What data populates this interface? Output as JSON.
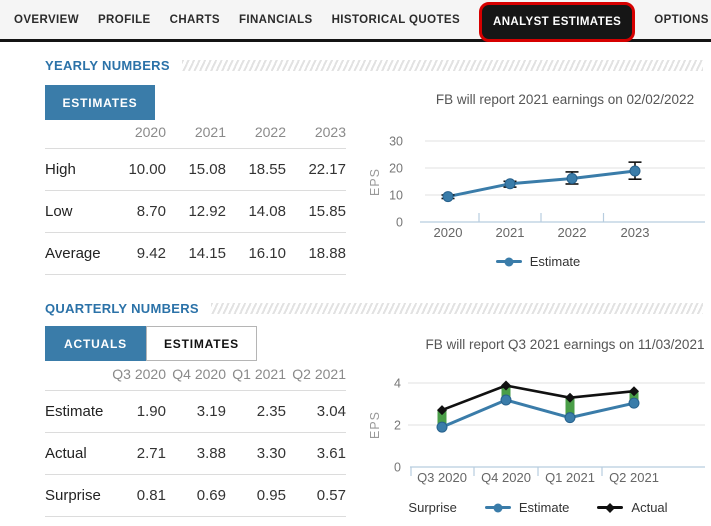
{
  "nav": {
    "tabs": [
      {
        "label": "OVERVIEW",
        "active": false
      },
      {
        "label": "PROFILE",
        "active": false
      },
      {
        "label": "CHARTS",
        "active": false
      },
      {
        "label": "FINANCIALS",
        "active": false
      },
      {
        "label": "HISTORICAL QUOTES",
        "active": false
      },
      {
        "label": "ANALYST ESTIMATES",
        "active": true
      },
      {
        "label": "OPTIONS",
        "active": false
      }
    ]
  },
  "colors": {
    "accent_blue": "#3a7ca9",
    "heading_blue": "#2b72a8",
    "active_tab_outline_red": "#d60000",
    "active_tab_bg": "#161616",
    "surprise_green": "#4a9e48",
    "actual_black": "#111111"
  },
  "yearly": {
    "heading": "YEARLY NUMBERS",
    "buttons": [
      {
        "label": "ESTIMATES",
        "active": true
      }
    ],
    "table": {
      "columns": [
        "2020",
        "2021",
        "2022",
        "2023"
      ],
      "rows": [
        {
          "label": "High",
          "values": [
            "10.00",
            "15.08",
            "18.55",
            "22.17"
          ]
        },
        {
          "label": "Low",
          "values": [
            "8.70",
            "12.92",
            "14.08",
            "15.85"
          ]
        },
        {
          "label": "Average",
          "values": [
            "9.42",
            "14.15",
            "16.10",
            "18.88"
          ]
        }
      ]
    }
  },
  "quarterly": {
    "heading": "QUARTERLY NUMBERS",
    "buttons": [
      {
        "label": "ACTUALS",
        "active": true
      },
      {
        "label": "ESTIMATES",
        "active": false
      }
    ],
    "table": {
      "columns": [
        "Q3 2020",
        "Q4 2020",
        "Q1 2021",
        "Q2 2021"
      ],
      "rows": [
        {
          "label": "Estimate",
          "values": [
            "1.90",
            "3.19",
            "2.35",
            "3.04"
          ]
        },
        {
          "label": "Actual",
          "values": [
            "2.71",
            "3.88",
            "3.30",
            "3.61"
          ]
        },
        {
          "label": "Surprise",
          "values": [
            "0.81",
            "0.69",
            "0.95",
            "0.57"
          ]
        }
      ]
    }
  },
  "chart_data": [
    {
      "type": "line",
      "title": "FB will report 2021 earnings on 02/02/2022",
      "ylabel": "EPS",
      "categories": [
        "2020",
        "2021",
        "2022",
        "2023"
      ],
      "yticks": [
        0,
        10,
        20,
        30
      ],
      "ylim": [
        0,
        33
      ],
      "grid": true,
      "legend_position": "bottom",
      "series": [
        {
          "name": "Estimate",
          "values": [
            9.42,
            14.15,
            16.1,
            18.88
          ],
          "color": "#3a7ca9",
          "marker": "circle"
        }
      ],
      "error_bars": {
        "low": [
          8.7,
          12.92,
          14.08,
          15.85
        ],
        "high": [
          10.0,
          15.08,
          18.55,
          22.17
        ],
        "color": "#111111"
      }
    },
    {
      "type": "line",
      "title": "FB will report Q3 2021 earnings on 11/03/2021",
      "ylabel": "EPS",
      "categories": [
        "Q3 2020",
        "Q4 2020",
        "Q1 2021",
        "Q2 2021"
      ],
      "yticks": [
        0,
        2,
        4
      ],
      "ylim": [
        0,
        4.6
      ],
      "grid": true,
      "legend_position": "bottom",
      "series": [
        {
          "name": "Estimate",
          "values": [
            1.9,
            3.19,
            2.35,
            3.04
          ],
          "color": "#3a7ca9",
          "marker": "circle"
        },
        {
          "name": "Actual",
          "values": [
            2.71,
            3.88,
            3.3,
            3.61
          ],
          "color": "#111111",
          "marker": "diamond"
        }
      ],
      "surprise_series": {
        "name": "Surprise",
        "color": "#4a9e48"
      }
    }
  ]
}
